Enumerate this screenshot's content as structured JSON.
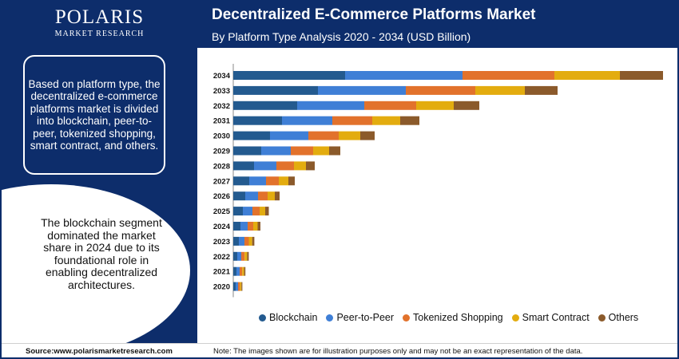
{
  "brand": {
    "name": "POLARIS",
    "tagline": "MARKET RESEARCH"
  },
  "header": {
    "title": "Decentralized E-Commerce Platforms Market",
    "subtitle": "By Platform Type Analysis 2020 - 2034 (USD Billion)"
  },
  "panel": {
    "summary": "Based on platform type, the decentralized e-commerce platforms market is divided into blockchain, peer-to-peer, tokenized shopping, smart contract, and others.",
    "highlight": "The blockchain segment dominated the market share in 2024 due to its foundational role in enabling decentralized architectures."
  },
  "footer": {
    "source": "Source:www.polarismarketresearch.com",
    "note": "Note: The images shown are for illustration purposes only and may not be an exact representation of the data."
  },
  "colors": [
    "#235a8f",
    "#3f7fd6",
    "#e2722c",
    "#e3ac0f",
    "#8b5a2b"
  ],
  "chart_data": {
    "type": "bar",
    "orientation": "horizontal",
    "stacked": true,
    "categories": [
      "2034",
      "2033",
      "2032",
      "2031",
      "2030",
      "2029",
      "2028",
      "2027",
      "2026",
      "2025",
      "2024",
      "2023",
      "2022",
      "2021",
      "2020"
    ],
    "series": [
      {
        "name": "Blockchain",
        "values": [
          14.0,
          10.6,
          8.0,
          6.1,
          4.6,
          3.5,
          2.6,
          2.0,
          1.5,
          1.2,
          0.9,
          0.7,
          0.5,
          0.4,
          0.3
        ]
      },
      {
        "name": "Peer-to-Peer",
        "values": [
          14.7,
          11.0,
          8.4,
          6.3,
          4.8,
          3.7,
          2.8,
          2.1,
          1.6,
          1.2,
          0.9,
          0.7,
          0.5,
          0.4,
          0.3
        ]
      },
      {
        "name": "Tokenized Shopping",
        "values": [
          11.5,
          8.7,
          6.5,
          5.0,
          3.8,
          2.8,
          2.2,
          1.6,
          1.2,
          0.9,
          0.7,
          0.55,
          0.42,
          0.32,
          0.24
        ]
      },
      {
        "name": "Smart Contract",
        "values": [
          8.2,
          6.2,
          4.7,
          3.5,
          2.7,
          2.0,
          1.5,
          1.2,
          0.9,
          0.7,
          0.55,
          0.42,
          0.32,
          0.24,
          0.18
        ]
      },
      {
        "name": "Others",
        "values": [
          5.4,
          4.1,
          3.2,
          2.4,
          1.8,
          1.4,
          1.1,
          0.8,
          0.6,
          0.45,
          0.35,
          0.27,
          0.2,
          0.16,
          0.12
        ]
      }
    ],
    "xlim": [
      0,
      54
    ],
    "legend": "bottom"
  }
}
